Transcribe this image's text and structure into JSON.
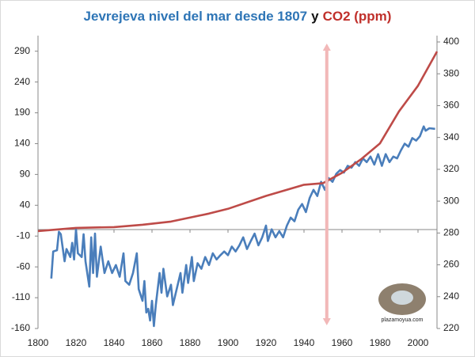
{
  "chart_data": {
    "type": "line",
    "title": [
      {
        "text": "Jevrejeva nivel del mar desde 1807",
        "color": "#2e75b6"
      },
      {
        "text": "y",
        "color": "#111111"
      },
      {
        "text": "CO2 (ppm)",
        "color": "#c0302b"
      }
    ],
    "xlim": [
      1800,
      2010
    ],
    "xticks": [
      1800,
      1820,
      1840,
      1860,
      1880,
      1900,
      1920,
      1940,
      1960,
      1980,
      2000
    ],
    "ylim": [
      -160,
      305
    ],
    "yticks": [
      -160,
      -110,
      -60,
      -10,
      40,
      90,
      140,
      190,
      240,
      290
    ],
    "y2lim": [
      220,
      400
    ],
    "y2ticks": [
      220,
      240,
      260,
      280,
      300,
      320,
      340,
      360,
      380,
      400
    ],
    "vline": {
      "x": 1952,
      "color": "#f2b8b8"
    },
    "watermark": "plazamoyua.com",
    "series": [
      {
        "color": "#4a7ebb",
        "x": [
          1807,
          1808,
          1810,
          1811,
          1812,
          1814,
          1815,
          1817,
          1818,
          1819,
          1820,
          1821,
          1823,
          1824,
          1825,
          1827,
          1828,
          1829,
          1830,
          1831,
          1833,
          1835,
          1837,
          1839,
          1841,
          1843,
          1845,
          1846,
          1848,
          1850,
          1852,
          1853,
          1855,
          1856,
          1857,
          1858,
          1859,
          1860,
          1861,
          1862,
          1864,
          1865,
          1866,
          1868,
          1870,
          1871,
          1873,
          1875,
          1876,
          1878,
          1879,
          1881,
          1882,
          1884,
          1886,
          1888,
          1890,
          1892,
          1894,
          1896,
          1898,
          1900,
          1902,
          1904,
          1906,
          1908,
          1910,
          1912,
          1914,
          1916,
          1918,
          1920,
          1921,
          1923,
          1925,
          1927,
          1929,
          1931,
          1933,
          1935,
          1937,
          1939,
          1941,
          1943,
          1945,
          1947,
          1949,
          1951,
          1953,
          1955,
          1957,
          1959,
          1961,
          1963,
          1965,
          1967,
          1969,
          1971,
          1973,
          1975,
          1977,
          1979,
          1981,
          1983,
          1985,
          1987,
          1989,
          1991,
          1993,
          1995,
          1997,
          1999,
          2001,
          2003,
          2004,
          2006,
          2009
        ],
        "values": [
          -79,
          -35,
          -33,
          -3,
          -7,
          -51,
          -31,
          -44,
          -21,
          -48,
          1,
          -38,
          -44,
          -7,
          -51,
          -92,
          -12,
          -70,
          -6,
          -76,
          -27,
          -70,
          -51,
          -70,
          -57,
          -76,
          -38,
          -83,
          -89,
          -70,
          -38,
          -96,
          -115,
          -83,
          -134,
          -128,
          -147,
          -115,
          -156,
          -122,
          -70,
          -102,
          -63,
          -108,
          -89,
          -122,
          -96,
          -70,
          -102,
          -57,
          -86,
          -44,
          -83,
          -54,
          -63,
          -44,
          -57,
          -38,
          -48,
          -41,
          -35,
          -41,
          -27,
          -35,
          -25,
          -12,
          -31,
          -18,
          -6,
          -25,
          -12,
          7,
          -18,
          1,
          -12,
          -2,
          -12,
          7,
          20,
          14,
          33,
          42,
          29,
          52,
          65,
          55,
          78,
          65,
          84,
          78,
          91,
          97,
          93,
          104,
          101,
          110,
          104,
          116,
          110,
          119,
          106,
          123,
          104,
          123,
          110,
          119,
          116,
          129,
          140,
          135,
          149,
          145,
          152,
          168,
          161,
          165,
          164
        ]
      },
      {
        "color": "#be4b48",
        "axis": "y2",
        "x": [
          1800,
          1820,
          1840,
          1855,
          1870,
          1890,
          1900,
          1920,
          1940,
          1950,
          1960,
          1970,
          1980,
          1990,
          2000,
          2010
        ],
        "values": [
          281.2,
          283.2,
          283.7,
          285.2,
          287.2,
          292.2,
          295.2,
          303.3,
          310.3,
          311.3,
          317.8,
          326.3,
          336.3,
          356.4,
          372.5,
          394
        ]
      }
    ]
  }
}
